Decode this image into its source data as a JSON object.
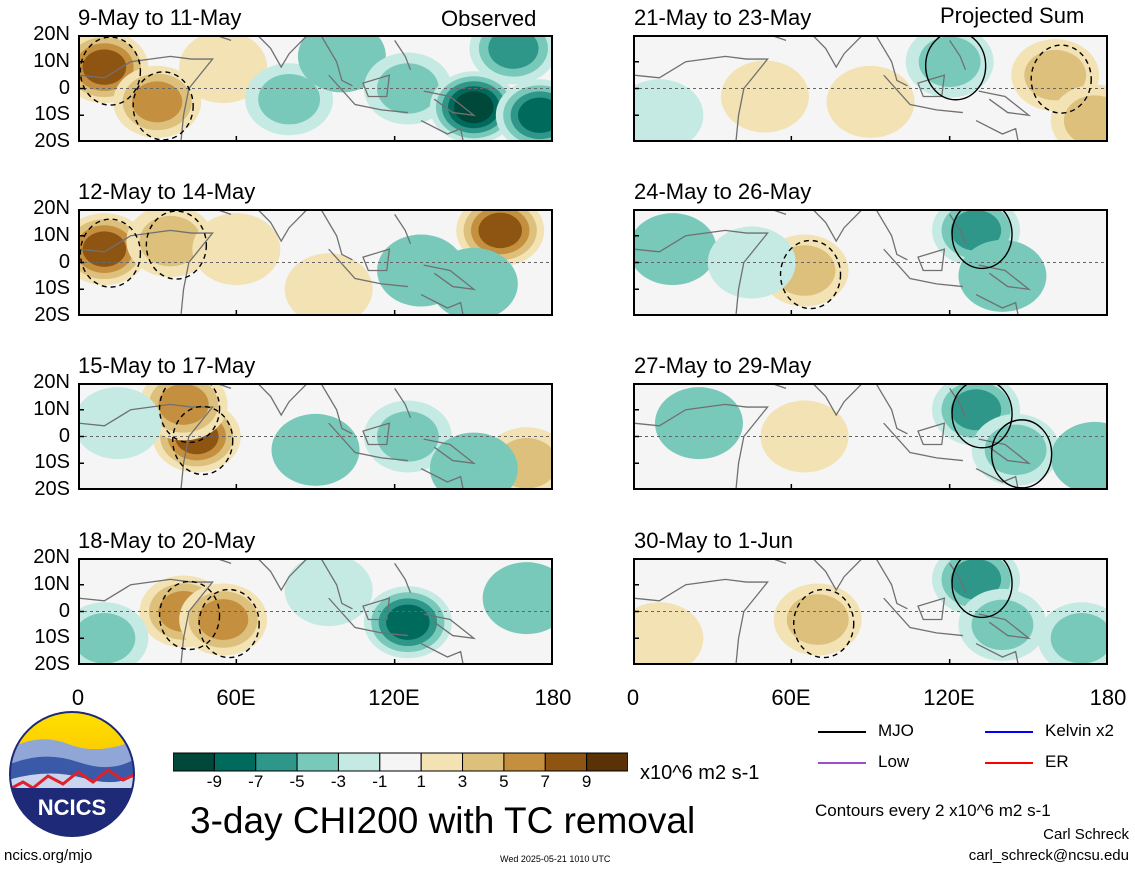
{
  "chart_data": {
    "type": "heatmap",
    "title": "3-day CHI200 with TC removal",
    "units": "x10^6 m2 s-1",
    "colorbar": {
      "labels": [
        "-9",
        "-7",
        "-5",
        "-3",
        "-1",
        "1",
        "3",
        "5",
        "7",
        "9"
      ],
      "colors": [
        "#00493a",
        "#006b5c",
        "#2e978a",
        "#79c9bb",
        "#c5eae3",
        "#f5f5f5",
        "#f2e2b4",
        "#dcc07c",
        "#c48f3e",
        "#8e5512",
        "#5a3206"
      ]
    },
    "contour_note": "Contours every 2 x10^6 m2 s-1",
    "x_ticks": [
      "0",
      "60E",
      "120E",
      "180"
    ],
    "y_ticks": [
      "20N",
      "10N",
      "0",
      "10S",
      "20S"
    ],
    "columns": [
      {
        "tag": "Observed",
        "panels": [
          {
            "label": "9-May to 11-May",
            "blobs": [
              {
                "lon": 10,
                "lat": 8,
                "v": 7
              },
              {
                "lon": 30,
                "lat": -5,
                "v": 5
              },
              {
                "lon": 55,
                "lat": 8,
                "v": 2
              },
              {
                "lon": 80,
                "lat": -4,
                "v": -3
              },
              {
                "lon": 100,
                "lat": 12,
                "v": -2
              },
              {
                "lon": 125,
                "lat": 0,
                "v": -3
              },
              {
                "lon": 150,
                "lat": -7,
                "v": -9
              },
              {
                "lon": 175,
                "lat": -10,
                "v": -7
              },
              {
                "lon": 165,
                "lat": 15,
                "v": -5
              }
            ]
          },
          {
            "label": "12-May to 14-May",
            "blobs": [
              {
                "lon": 10,
                "lat": 5,
                "v": 7
              },
              {
                "lon": 35,
                "lat": 8,
                "v": 3
              },
              {
                "lon": 60,
                "lat": 5,
                "v": 2
              },
              {
                "lon": 95,
                "lat": -10,
                "v": 2
              },
              {
                "lon": 130,
                "lat": -3,
                "v": -2
              },
              {
                "lon": 160,
                "lat": 12,
                "v": 7
              },
              {
                "lon": 150,
                "lat": -8,
                "v": -2
              }
            ]
          },
          {
            "label": "15-May to 17-May",
            "blobs": [
              {
                "lon": 45,
                "lat": 0,
                "v": 7
              },
              {
                "lon": 40,
                "lat": 12,
                "v": 5
              },
              {
                "lon": 15,
                "lat": 5,
                "v": -1
              },
              {
                "lon": 90,
                "lat": -5,
                "v": -2
              },
              {
                "lon": 125,
                "lat": 0,
                "v": -3
              },
              {
                "lon": 170,
                "lat": -10,
                "v": 3
              },
              {
                "lon": 150,
                "lat": -12,
                "v": -2
              }
            ]
          },
          {
            "label": "18-May to 20-May",
            "blobs": [
              {
                "lon": 40,
                "lat": 0,
                "v": 5
              },
              {
                "lon": 55,
                "lat": -3,
                "v": 5
              },
              {
                "lon": 10,
                "lat": -10,
                "v": -3
              },
              {
                "lon": 125,
                "lat": -4,
                "v": -7
              },
              {
                "lon": 95,
                "lat": 8,
                "v": -1
              },
              {
                "lon": 170,
                "lat": 5,
                "v": -2
              }
            ]
          }
        ]
      },
      {
        "tag": "Projected Sum",
        "panels": [
          {
            "label": "21-May to 23-May",
            "blobs": [
              {
                "lon": 50,
                "lat": -3,
                "v": 2
              },
              {
                "lon": 90,
                "lat": -5,
                "v": 2
              },
              {
                "lon": 120,
                "lat": 10,
                "v": -3
              },
              {
                "lon": 160,
                "lat": 5,
                "v": 3
              },
              {
                "lon": 175,
                "lat": -12,
                "v": 3
              },
              {
                "lon": 10,
                "lat": -10,
                "v": -1
              }
            ]
          },
          {
            "label": "24-May to 26-May",
            "blobs": [
              {
                "lon": 15,
                "lat": 5,
                "v": -2
              },
              {
                "lon": 65,
                "lat": -3,
                "v": 3
              },
              {
                "lon": 130,
                "lat": 12,
                "v": -5
              },
              {
                "lon": 140,
                "lat": -5,
                "v": -2
              },
              {
                "lon": 45,
                "lat": 0,
                "v": -1
              }
            ]
          },
          {
            "label": "27-May to 29-May",
            "blobs": [
              {
                "lon": 25,
                "lat": 5,
                "v": -2
              },
              {
                "lon": 65,
                "lat": 0,
                "v": 2
              },
              {
                "lon": 130,
                "lat": 10,
                "v": -5
              },
              {
                "lon": 145,
                "lat": -5,
                "v": -3
              },
              {
                "lon": 175,
                "lat": -8,
                "v": -2
              }
            ]
          },
          {
            "label": "30-May to 1-Jun",
            "blobs": [
              {
                "lon": 70,
                "lat": -3,
                "v": 3
              },
              {
                "lon": 10,
                "lat": -10,
                "v": 2
              },
              {
                "lon": 130,
                "lat": 12,
                "v": -5
              },
              {
                "lon": 140,
                "lat": -5,
                "v": -3
              },
              {
                "lon": 170,
                "lat": -10,
                "v": -3
              }
            ]
          }
        ]
      }
    ]
  },
  "legend": {
    "items": [
      {
        "name": "MJO",
        "color": "#000000"
      },
      {
        "name": "Kelvin x2",
        "color": "#0000ff"
      },
      {
        "name": "Low",
        "color": "#9a4fd0"
      },
      {
        "name": "ER",
        "color": "#ff0000"
      }
    ]
  },
  "logo": {
    "text": "NCICS"
  },
  "footer": {
    "site": "ncics.org/mjo",
    "timestamp": "Wed 2025-05-21 1010 UTC",
    "author": "Carl Schreck",
    "email": "carl_schreck@ncsu.edu"
  }
}
